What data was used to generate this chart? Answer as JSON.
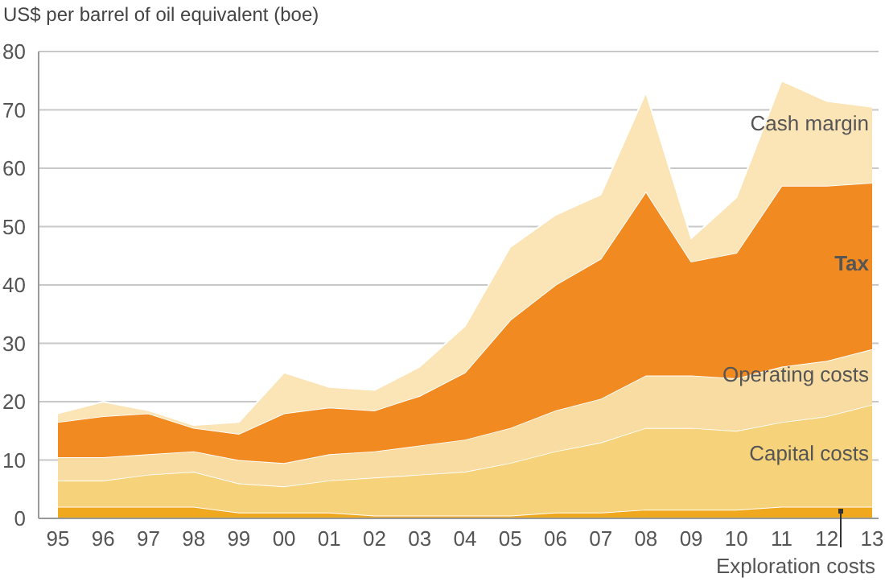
{
  "chart_data": {
    "type": "area",
    "stacked": true,
    "title": "US$ per barrel of oil equivalent (boe)",
    "categories": [
      "95",
      "96",
      "97",
      "98",
      "99",
      "00",
      "01",
      "02",
      "03",
      "04",
      "05",
      "06",
      "07",
      "08",
      "09",
      "10",
      "11",
      "12",
      "13"
    ],
    "series": [
      {
        "name": "Exploration costs",
        "color": "#f0a81e",
        "values": [
          2,
          2,
          2,
          2,
          1,
          1,
          1,
          0.5,
          0.5,
          0.5,
          0.5,
          1,
          1,
          1.5,
          1.5,
          1.5,
          2,
          2,
          2
        ]
      },
      {
        "name": "Capital costs",
        "color": "#f6d27a",
        "values": [
          4.5,
          4.5,
          5.5,
          6,
          5,
          4.5,
          5.5,
          6.5,
          7,
          7.5,
          9,
          10.5,
          12,
          14,
          14,
          13.5,
          14.5,
          15.5,
          17.5
        ]
      },
      {
        "name": "Operating costs",
        "color": "#f9dca2",
        "values": [
          4,
          4,
          3.5,
          3.5,
          4,
          4,
          4.5,
          4.5,
          5,
          5.5,
          6,
          7,
          7.5,
          9,
          9,
          9,
          9.5,
          9.5,
          9.5
        ]
      },
      {
        "name": "Tax",
        "color": "#f18a21",
        "values": [
          6,
          7,
          7,
          4,
          4.5,
          8.5,
          8,
          7,
          8.5,
          11.5,
          18.5,
          21.5,
          24,
          31.5,
          19.5,
          21.5,
          31,
          30,
          28.5
        ]
      },
      {
        "name": "Cash margin",
        "color": "#fbe4b6",
        "values": [
          1.5,
          2.5,
          0.5,
          0.5,
          2,
          7,
          3.5,
          3.5,
          5,
          8,
          12.5,
          12,
          11,
          17,
          4,
          9.5,
          18,
          14.5,
          13
        ]
      }
    ],
    "ylim": [
      0,
      80
    ],
    "yticks": [
      0,
      10,
      20,
      30,
      40,
      50,
      60,
      70,
      80
    ],
    "grid": "y"
  }
}
